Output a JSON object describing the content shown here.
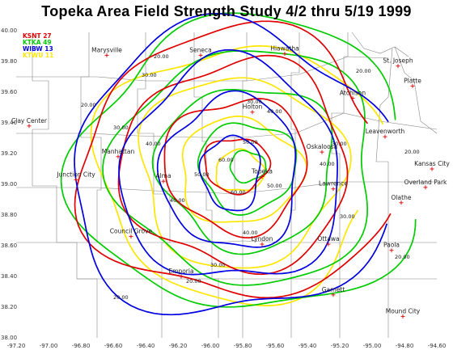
{
  "title": "Topeka Area Field Strength Study 4/2 thru 5/19 1999",
  "legend": [
    {
      "label": "KSNT 27",
      "color": "#e00000"
    },
    {
      "label": "KTKA 49",
      "color": "#00cc00"
    },
    {
      "label": "WIBW 13",
      "color": "#0000e0"
    },
    {
      "label": "KTWU 11",
      "color": "#ffe600"
    }
  ],
  "x_ticks": [
    "-97.20",
    "-97.00",
    "-96.80",
    "-96.60",
    "-96.40",
    "-96.20",
    "-96.00",
    "-95.80",
    "-95.60",
    "-95.40",
    "-95.20",
    "-95.00",
    "-94.80",
    "-94.60"
  ],
  "y_ticks": [
    "40.00",
    "39.80",
    "39.60",
    "39.40",
    "39.20",
    "39.00",
    "38.80",
    "38.60",
    "38.40",
    "38.20",
    "38.00"
  ],
  "cities": [
    {
      "name": "Marysville",
      "lon": -96.64,
      "lat": 39.84
    },
    {
      "name": "Seneca",
      "lon": -96.06,
      "lat": 39.84
    },
    {
      "name": "Hiawatha",
      "lon": -95.54,
      "lat": 39.85
    },
    {
      "name": "St. Joseph",
      "lon": -94.84,
      "lat": 39.77
    },
    {
      "name": "Atchison",
      "lon": -95.12,
      "lat": 39.56
    },
    {
      "name": "Platte",
      "lon": -94.75,
      "lat": 39.64
    },
    {
      "name": "Clay Center",
      "lon": -97.12,
      "lat": 39.38
    },
    {
      "name": "Holton",
      "lon": -95.74,
      "lat": 39.47
    },
    {
      "name": "Leavenworth",
      "lon": -94.92,
      "lat": 39.31
    },
    {
      "name": "Oskaloosa",
      "lon": -95.31,
      "lat": 39.21
    },
    {
      "name": "Manhattan",
      "lon": -96.57,
      "lat": 39.18
    },
    {
      "name": "Topeka",
      "lon": -95.68,
      "lat": 39.05
    },
    {
      "name": "Kansas City",
      "lon": -94.63,
      "lat": 39.1
    },
    {
      "name": "Alma",
      "lon": -96.29,
      "lat": 39.02
    },
    {
      "name": "Lawrence",
      "lon": -95.24,
      "lat": 38.97
    },
    {
      "name": "Overland Park",
      "lon": -94.67,
      "lat": 38.98
    },
    {
      "name": "Junction City",
      "lon": -96.83,
      "lat": 39.03
    },
    {
      "name": "Olathe",
      "lon": -94.82,
      "lat": 38.88
    },
    {
      "name": "Council Grove",
      "lon": -96.49,
      "lat": 38.66
    },
    {
      "name": "Lyndon",
      "lon": -95.68,
      "lat": 38.61
    },
    {
      "name": "Ottawa",
      "lon": -95.27,
      "lat": 38.61
    },
    {
      "name": "Paola",
      "lon": -94.88,
      "lat": 38.57
    },
    {
      "name": "Emporia",
      "lon": -96.18,
      "lat": 38.4
    },
    {
      "name": "Garnett",
      "lon": -95.24,
      "lat": 38.28
    },
    {
      "name": "Mound City",
      "lon": -94.81,
      "lat": 38.14
    }
  ],
  "contour_labels": [
    "20.00",
    "30.00",
    "40.00",
    "50.00",
    "60.00"
  ]
}
